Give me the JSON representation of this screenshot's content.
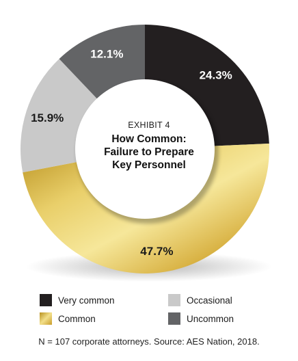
{
  "chart_data": {
    "type": "pie",
    "subtitle": "EXHIBIT 4",
    "title_lines": [
      "How Common:",
      "Failure to Prepare",
      "Key Personnel"
    ],
    "categories": [
      "Very common",
      "Common",
      "Occasional",
      "Uncommon"
    ],
    "values": [
      24.3,
      47.7,
      15.9,
      12.1
    ],
    "value_labels": [
      "24.3%",
      "47.7%",
      "15.9%",
      "12.1%"
    ],
    "colors": [
      "#231f20",
      "#d4af37",
      "#c9c9c9",
      "#636466"
    ],
    "legend_placement": "bottom",
    "legend_order": [
      "Very common",
      "Occasional",
      "Common",
      "Uncommon"
    ],
    "footnote": "N = 107 corporate attorneys. Source: AES Nation, 2018."
  }
}
